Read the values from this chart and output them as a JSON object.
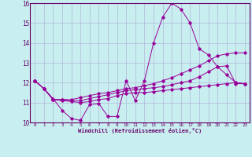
{
  "xlabel": "Windchill (Refroidissement éolien,°C)",
  "bg_color": "#c8eef0",
  "grid_color": "#b0b8d8",
  "line_color": "#990099",
  "xlim": [
    -0.5,
    23.5
  ],
  "ylim": [
    10,
    16
  ],
  "xticks": [
    0,
    1,
    2,
    3,
    4,
    5,
    6,
    7,
    8,
    9,
    10,
    11,
    12,
    13,
    14,
    15,
    16,
    17,
    18,
    19,
    20,
    21,
    22,
    23
  ],
  "yticks": [
    10,
    11,
    12,
    13,
    14,
    15,
    16
  ],
  "lines": [
    {
      "x": [
        0,
        1,
        2,
        3,
        4,
        5,
        6,
        7,
        8,
        9,
        10,
        11,
        12,
        13,
        14,
        15,
        16,
        17,
        18,
        19,
        20,
        21,
        22,
        23
      ],
      "y": [
        12.1,
        11.7,
        11.2,
        10.6,
        10.2,
        10.1,
        10.9,
        10.95,
        10.3,
        10.3,
        12.1,
        11.1,
        12.1,
        14.0,
        15.3,
        16.0,
        15.7,
        15.0,
        13.7,
        13.4,
        12.8,
        12.4,
        12.0,
        11.95
      ]
    },
    {
      "x": [
        0,
        1,
        2,
        3,
        4,
        5,
        6,
        7,
        8,
        9,
        10,
        11,
        12,
        13,
        14,
        15,
        16,
        17,
        18,
        19,
        20,
        21,
        22,
        23
      ],
      "y": [
        12.1,
        11.7,
        11.15,
        11.15,
        11.15,
        11.25,
        11.35,
        11.45,
        11.5,
        11.6,
        11.7,
        11.75,
        11.85,
        11.95,
        12.1,
        12.25,
        12.45,
        12.65,
        12.85,
        13.1,
        13.35,
        13.45,
        13.5,
        13.5
      ]
    },
    {
      "x": [
        0,
        1,
        2,
        3,
        4,
        5,
        6,
        7,
        8,
        9,
        10,
        11,
        12,
        13,
        14,
        15,
        16,
        17,
        18,
        19,
        20,
        21,
        22,
        23
      ],
      "y": [
        12.1,
        11.7,
        11.15,
        11.15,
        11.1,
        11.1,
        11.2,
        11.3,
        11.4,
        11.5,
        11.6,
        11.65,
        11.7,
        11.75,
        11.8,
        11.9,
        12.0,
        12.1,
        12.3,
        12.55,
        12.8,
        12.85,
        11.95,
        11.95
      ]
    },
    {
      "x": [
        0,
        1,
        2,
        3,
        4,
        5,
        6,
        7,
        8,
        9,
        10,
        11,
        12,
        13,
        14,
        15,
        16,
        17,
        18,
        19,
        20,
        21,
        22,
        23
      ],
      "y": [
        12.1,
        11.7,
        11.15,
        11.1,
        11.05,
        11.0,
        11.05,
        11.15,
        11.2,
        11.35,
        11.45,
        11.5,
        11.5,
        11.55,
        11.6,
        11.65,
        11.7,
        11.75,
        11.8,
        11.85,
        11.9,
        11.95,
        12.0,
        11.95
      ]
    }
  ]
}
